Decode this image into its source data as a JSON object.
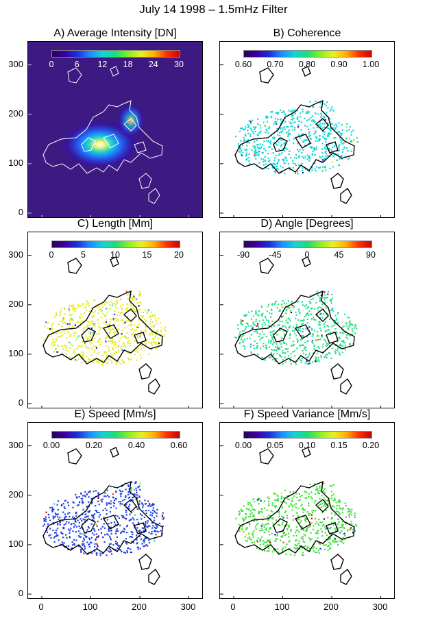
{
  "figure": {
    "title": "July 14 1998 – 1.5mHz Filter"
  },
  "colorbar_scale": [
    "#2a005a",
    "#3a00a0",
    "#1f2fe0",
    "#1f8fff",
    "#12d4d8",
    "#18e070",
    "#8af020",
    "#eaf020",
    "#ffb000",
    "#ff3000",
    "#d00000"
  ],
  "y_axis_ticks": [
    "0",
    "100",
    "200",
    "300"
  ],
  "x_axis_ticks": [
    "0",
    "100",
    "200",
    "300"
  ],
  "panels": [
    {
      "title": "A) Average Intensity [DN]",
      "colorbar_ticks": [
        "0",
        "6",
        "12",
        "18",
        "24",
        "30"
      ],
      "dark_background": true
    },
    {
      "title": "B) Coherence",
      "colorbar_ticks": [
        "0.60",
        "0.70",
        "0.80",
        "0.90",
        "1.00"
      ],
      "dominant_color": "#13d6d6"
    },
    {
      "title": "C) Length [Mm]",
      "colorbar_ticks": [
        "0",
        "5",
        "10",
        "15",
        "20"
      ],
      "dominant_color": "#e7ec29"
    },
    {
      "title": "D) Angle [Degrees]",
      "colorbar_ticks": [
        "-90",
        "-45",
        "0",
        "45",
        "90"
      ],
      "dominant_color": "#27e08c"
    },
    {
      "title": "E) Speed [Mm/s]",
      "colorbar_ticks": [
        "0.00",
        "0.20",
        "0.40",
        "0.60"
      ],
      "dominant_color": "#1f3fe6"
    },
    {
      "title": "F) Speed Variance [Mm/s]",
      "colorbar_ticks": [
        "0.00",
        "0.05",
        "0.10",
        "0.15",
        "0.20"
      ],
      "dominant_color": "#3fe23a"
    }
  ]
}
